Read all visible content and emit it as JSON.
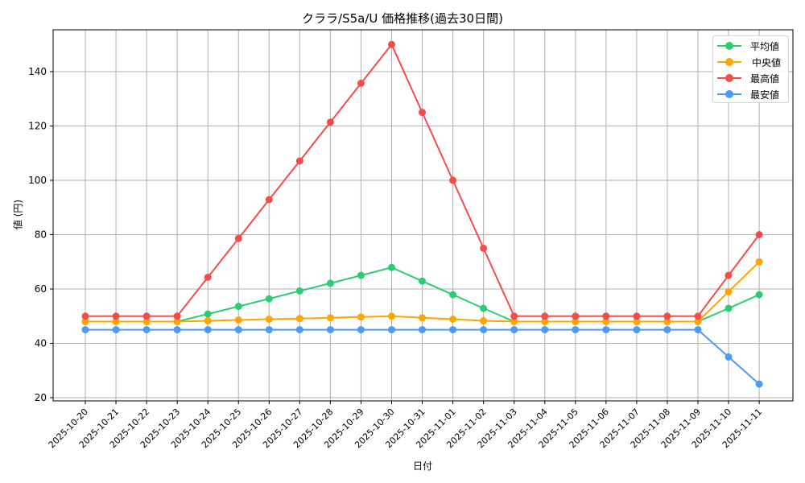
{
  "chart_data": {
    "type": "line",
    "title": "クララ/S5a/U 価格推移(過去30日間)",
    "xlabel": "日付",
    "ylabel": "値 (円)",
    "ylim": [
      19,
      155
    ],
    "yticks": [
      20,
      40,
      60,
      80,
      100,
      120,
      140
    ],
    "grid": true,
    "legend_position": "upper right",
    "categories": [
      "2025-10-20",
      "2025-10-21",
      "2025-10-22",
      "2025-10-23",
      "2025-10-24",
      "2025-10-25",
      "2025-10-26",
      "2025-10-27",
      "2025-10-28",
      "2025-10-29",
      "2025-10-30",
      "2025-10-31",
      "2025-11-01",
      "2025-11-02",
      "2025-11-03",
      "2025-11-04",
      "2025-11-05",
      "2025-11-06",
      "2025-11-07",
      "2025-11-08",
      "2025-11-09",
      "2025-11-10",
      "2025-11-11"
    ],
    "series": [
      {
        "name": "平均値",
        "color": "#2ecc71",
        "values": [
          48,
          48,
          48,
          48,
          50.8,
          53.6,
          56.4,
          59.3,
          62.1,
          65,
          67.9,
          62.9,
          57.9,
          52.9,
          48,
          48,
          48,
          48,
          48,
          48,
          48,
          52.9,
          57.9
        ]
      },
      {
        "name": "中央値",
        "color": "#ffa500",
        "values": [
          48,
          48,
          48,
          48,
          48.3,
          48.6,
          48.9,
          49.1,
          49.4,
          49.7,
          50,
          49.4,
          48.9,
          48.3,
          48,
          48,
          48,
          48,
          48,
          48,
          48,
          59,
          70
        ]
      },
      {
        "name": "最高値",
        "color": "#f44b4b",
        "values": [
          50,
          50,
          50,
          50,
          64.3,
          78.6,
          92.9,
          107.1,
          121.4,
          135.7,
          150,
          125,
          100,
          75,
          50,
          50,
          50,
          50,
          50,
          50,
          50,
          65,
          80
        ]
      },
      {
        "name": "最安値",
        "color": "#4a9af7",
        "values": [
          45,
          45,
          45,
          45,
          45,
          45,
          45,
          45,
          45,
          45,
          45,
          45,
          45,
          45,
          45,
          45,
          45,
          45,
          45,
          45,
          45,
          35,
          25
        ]
      }
    ]
  }
}
